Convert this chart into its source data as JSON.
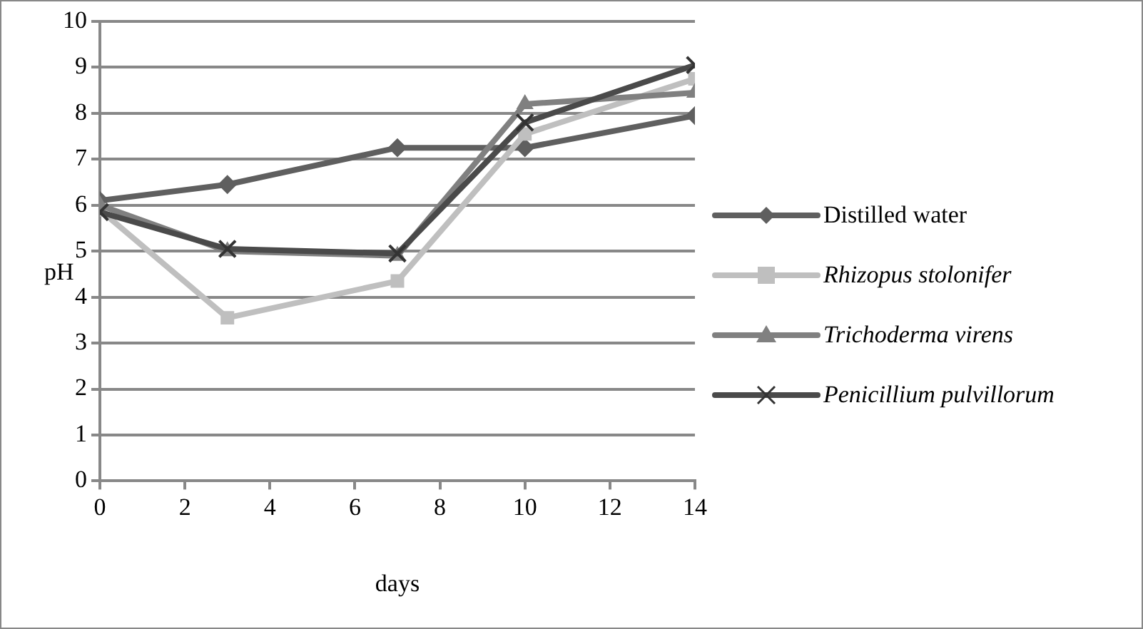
{
  "chart_data": {
    "type": "line",
    "xlabel": "days",
    "ylabel": "pH",
    "x": [
      0,
      3,
      7,
      10,
      14
    ],
    "xlim": [
      0,
      14
    ],
    "xticks": [
      0,
      2,
      4,
      6,
      8,
      10,
      12,
      14
    ],
    "ylim": [
      0,
      10
    ],
    "yticks": [
      0,
      1,
      2,
      3,
      4,
      5,
      6,
      7,
      8,
      9,
      10
    ],
    "grid": "y",
    "legend": "right",
    "line_style": "solid",
    "series": [
      {
        "name": "Distilled water",
        "color": "#5f5f5f",
        "marker": "diamond",
        "values": [
          6.1,
          6.45,
          7.25,
          7.25,
          7.95
        ]
      },
      {
        "name": "Rhizopus stolonifer",
        "color": "#bfbfbf",
        "marker": "square",
        "values": [
          5.9,
          3.55,
          4.35,
          7.55,
          8.75
        ]
      },
      {
        "name": "Trichoderma virens",
        "color": "#808080",
        "marker": "triangle",
        "values": [
          6.0,
          5.0,
          4.9,
          8.2,
          8.45
        ]
      },
      {
        "name": "Penicillium pulvillorum",
        "color": "#4a4a4a",
        "marker": "cross",
        "values": [
          5.85,
          5.05,
          4.95,
          7.8,
          9.05
        ]
      }
    ]
  }
}
